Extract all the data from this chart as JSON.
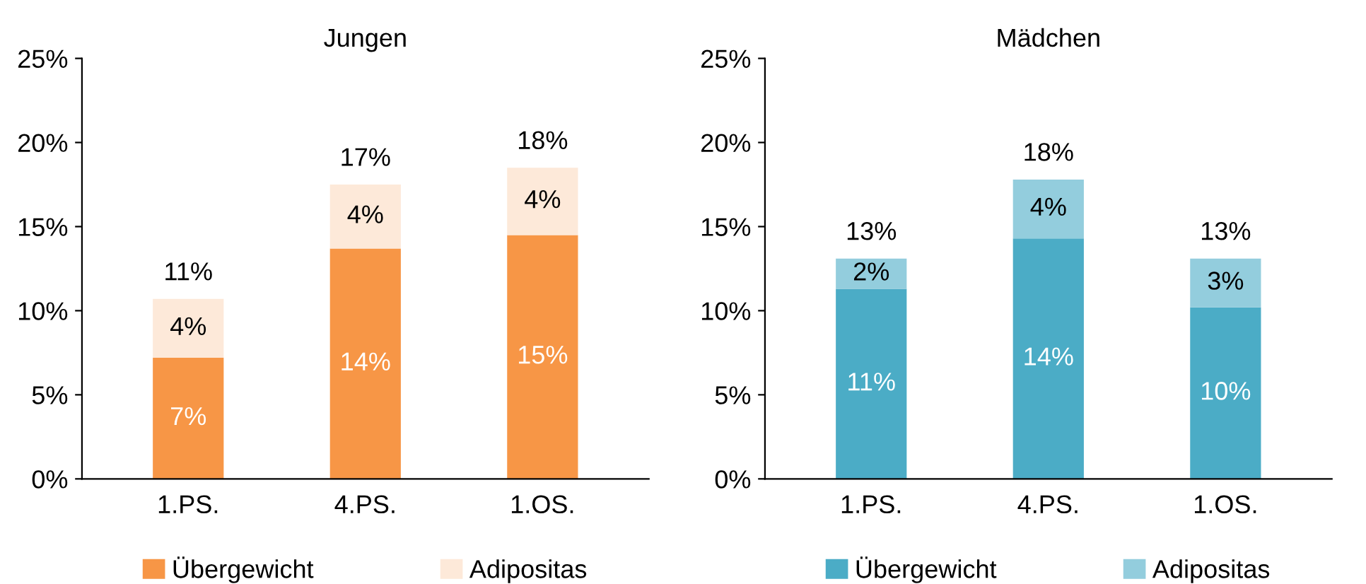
{
  "chart_data": [
    {
      "type": "bar",
      "title": "Jungen",
      "categories": [
        "1.PS.",
        "4.PS.",
        "1.OS."
      ],
      "stacked": true,
      "ylim": [
        0,
        25
      ],
      "yticks": [
        {
          "value": 0,
          "label": "0%"
        },
        {
          "value": 5,
          "label": "5%"
        },
        {
          "value": 10,
          "label": "10%"
        },
        {
          "value": 15,
          "label": "15%"
        },
        {
          "value": 20,
          "label": "20%"
        },
        {
          "value": 25,
          "label": "25%"
        }
      ],
      "grid": false,
      "legend": "bottom",
      "totals": [
        "11%",
        "17%",
        "18%"
      ],
      "series": [
        {
          "name": "Übergewicht",
          "color": "#f79646",
          "values": [
            7.2,
            13.7,
            14.5
          ],
          "value_labels": [
            "7%",
            "14%",
            "15%"
          ]
        },
        {
          "name": "Adipositas",
          "color": "#fde9d9",
          "values": [
            3.5,
            3.8,
            4.0
          ],
          "value_labels": [
            "4%",
            "4%",
            "4%"
          ]
        }
      ]
    },
    {
      "type": "bar",
      "title": "Mädchen",
      "categories": [
        "1.PS.",
        "4.PS.",
        "1.OS."
      ],
      "stacked": true,
      "ylim": [
        0,
        25
      ],
      "yticks": [
        {
          "value": 0,
          "label": "0%"
        },
        {
          "value": 5,
          "label": "5%"
        },
        {
          "value": 10,
          "label": "10%"
        },
        {
          "value": 15,
          "label": "15%"
        },
        {
          "value": 20,
          "label": "20%"
        },
        {
          "value": 25,
          "label": "25%"
        }
      ],
      "grid": false,
      "legend": "bottom",
      "totals": [
        "13%",
        "18%",
        "13%"
      ],
      "series": [
        {
          "name": "Übergewicht",
          "color": "#4bacc6",
          "values": [
            11.3,
            14.3,
            10.2
          ],
          "value_labels": [
            "11%",
            "14%",
            "10%"
          ]
        },
        {
          "name": "Adipositas",
          "color": "#93cddd",
          "values": [
            1.8,
            3.5,
            2.9
          ],
          "value_labels": [
            "2%",
            "4%",
            "3%"
          ]
        }
      ]
    }
  ]
}
